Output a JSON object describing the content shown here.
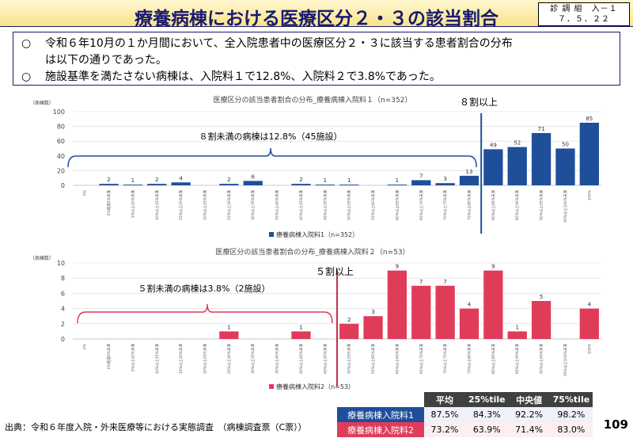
{
  "header": {
    "title": "療養病棟における医療区分２・３の該当割合",
    "doc_id_line1": "診 調 組　入－１",
    "doc_id_line2": "７．５．２２"
  },
  "notes": {
    "mark": "○",
    "line1": "令和６年10月の１か月間において、全入院患者中の医療区分２・３に該当する患者割合の分布",
    "line1_cont": "は以下の通りであった。",
    "line2": "施設基準を満たさない病棟は、入院料１で12.8%、入院料２で3.8%であった。"
  },
  "chart_data": [
    {
      "type": "bar",
      "title": "医療区分の該当患者割合の分布_療養病棟入院料１（n=352）",
      "ylabel": "（病棟数）",
      "ylim": [
        0,
        100
      ],
      "yticks": [
        0,
        20,
        40,
        60,
        80,
        100
      ],
      "color": "#1f4e9b",
      "categories": [
        "0%",
        "0%超過5%未満",
        "5%以上10%未満",
        "10%以上15%未満",
        "15%以上20%未満",
        "20%以上25%未満",
        "25%以上30%未満",
        "30%以上35%未満",
        "35%以上40%未満",
        "40%以上45%未満",
        "45%以上50%未満",
        "50%以上55%未満",
        "55%以上60%未満",
        "60%以上65%未満",
        "65%以上70%未満",
        "70%以上75%未満",
        "75%以上80%未満",
        "80%以上85%未満",
        "85%以上90%未満",
        "90%以上95%未満",
        "95%以上100%未満",
        "100%"
      ],
      "values": [
        0,
        2,
        1,
        2,
        4,
        0,
        2,
        6,
        0,
        2,
        1,
        1,
        0,
        1,
        7,
        3,
        13,
        49,
        52,
        71,
        50,
        85
      ],
      "labels": [
        "",
        "2",
        "1",
        "2",
        "4",
        "",
        "2",
        "6",
        "",
        "2",
        "1",
        "1",
        "",
        "1",
        "7",
        "3",
        "13",
        "49",
        "52",
        "71",
        "50",
        "85"
      ],
      "legend": "療養病棟入院料1（n=352）",
      "threshold_label": "８割以上",
      "under_label": "８割未満の病棟は12.8%（45施設）"
    },
    {
      "type": "bar",
      "title": "医療区分の該当患者割合の分布_療養病棟入院料２（n=53）",
      "ylabel": "（病棟数）",
      "ylim": [
        0,
        10
      ],
      "yticks": [
        0,
        2,
        4,
        6,
        8,
        10
      ],
      "color": "#e03c5a",
      "categories": [
        "0%",
        "0%超過5%未満",
        "5%以上10%未満",
        "10%以上15%未満",
        "15%以上20%未満",
        "20%以上25%未満",
        "25%以上30%未満",
        "30%以上35%未満",
        "35%以上40%未満",
        "40%以上45%未満",
        "45%以上50%未満",
        "50%以上55%未満",
        "55%以上60%未満",
        "60%以上65%未満",
        "65%以上70%未満",
        "70%以上75%未満",
        "75%以上80%未満",
        "80%以上85%未満",
        "85%以上90%未満",
        "90%以上95%未満",
        "95%以上100%未満",
        "100%"
      ],
      "values": [
        0,
        0,
        0,
        0,
        0,
        0,
        1,
        0,
        0,
        1,
        0,
        2,
        3,
        9,
        7,
        7,
        4,
        9,
        1,
        5,
        0,
        4
      ],
      "labels": [
        "",
        "",
        "",
        "",
        "",
        "",
        "1",
        "",
        "",
        "1",
        "",
        "2",
        "3",
        "9",
        "7",
        "7",
        "4",
        "9",
        "1",
        "5",
        "",
        "4"
      ],
      "legend": "療養病棟入院料2（n=53）",
      "threshold_label": "５割以上",
      "under_label": "５割未満の病棟は3.8%（2施設）"
    }
  ],
  "stats_table": {
    "headers": [
      "平均",
      "25%tile",
      "中央値",
      "75%tile"
    ],
    "rows": [
      {
        "label": "療養病棟入院料1",
        "values": [
          "87.5%",
          "84.3%",
          "92.2%",
          "98.2%"
        ]
      },
      {
        "label": "療養病棟入院料2",
        "values": [
          "73.2%",
          "63.9%",
          "71.4%",
          "83.0%"
        ]
      }
    ]
  },
  "footer": {
    "source": "出典：令和６年度入院・外来医療等における実態調査　（病棟調査票（C票））",
    "page": "109"
  }
}
